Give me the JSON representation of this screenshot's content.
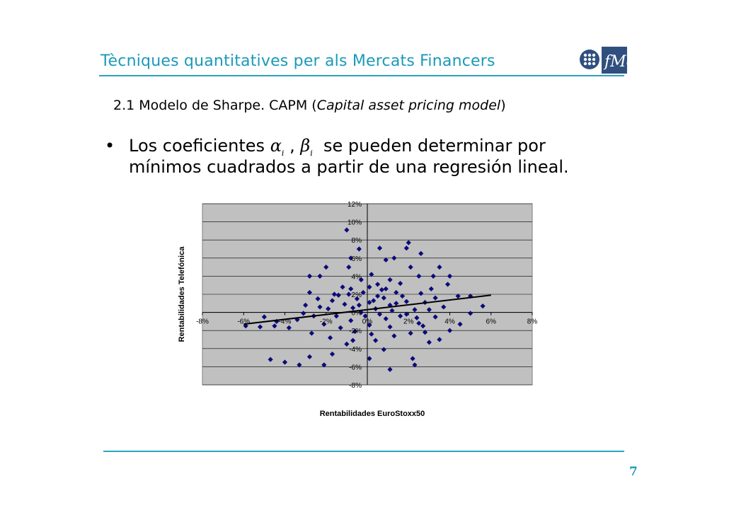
{
  "header": {
    "title": "Tècniques quantitatives per als Mercats Financers",
    "logo_text": "fMe"
  },
  "subtitle": {
    "main": "2.1 Modelo de Sharpe. CAPM (",
    "italic": "Capital asset pricing model",
    "close": ")"
  },
  "bullet": {
    "line1_pre": "Los coeficientes",
    "alpha": "α",
    "alpha_sub": "i",
    "comma": " ,",
    "beta": "β",
    "beta_sub": "i",
    "line1_post": "se pueden determinar por",
    "line2": "mínimos cuadrados a partir de una regresión lineal."
  },
  "chart_data": {
    "type": "scatter",
    "xlabel": "Rentabilidades  EuroStoxx50",
    "ylabel": "Rentabilidades Telefónica",
    "xlim": [
      -0.08,
      0.08
    ],
    "ylim": [
      -0.08,
      0.12
    ],
    "x_ticks": [
      "-8%",
      "-6%",
      "-4%",
      "-2%",
      "0%",
      "2%",
      "4%",
      "6%",
      "8%"
    ],
    "y_ticks": [
      "12%",
      "10%",
      "8%",
      "6%",
      "4%",
      "2%",
      "0%",
      "-2%",
      "-4%",
      "-6%",
      "-8%"
    ],
    "regression_line": {
      "x": [
        -0.06,
        0.06
      ],
      "y": [
        -0.013,
        0.019
      ]
    },
    "marker_color": "#0a0a7a",
    "plot_bg": "#c0c0c0",
    "grid": "horizontal",
    "points": [
      [
        -0.047,
        -0.052
      ],
      [
        -0.04,
        -0.055
      ],
      [
        -0.033,
        -0.058
      ],
      [
        -0.028,
        -0.049
      ],
      [
        -0.044,
        -0.01
      ],
      [
        -0.03,
        0.008
      ],
      [
        -0.028,
        0.04
      ],
      [
        -0.023,
        0.04
      ],
      [
        -0.02,
        0.05
      ],
      [
        -0.028,
        0.022
      ],
      [
        -0.01,
        0.091
      ],
      [
        -0.008,
        0.06
      ],
      [
        -0.009,
        0.05
      ],
      [
        -0.004,
        0.07
      ],
      [
        0.006,
        0.071
      ],
      [
        0.009,
        0.058
      ],
      [
        0.013,
        0.06
      ],
      [
        0.02,
        0.077
      ],
      [
        0.019,
        0.071
      ],
      [
        0.026,
        0.065
      ],
      [
        0.021,
        0.05
      ],
      [
        0.025,
        0.04
      ],
      [
        0.032,
        0.04
      ],
      [
        0.035,
        0.05
      ],
      [
        0.031,
        0.026
      ],
      [
        0.039,
        0.031
      ],
      [
        0.04,
        0.04
      ],
      [
        0.044,
        0.018
      ],
      [
        0.05,
        0.018
      ],
      [
        0.056,
        0.007
      ],
      [
        0.025,
        -0.012
      ],
      [
        0.028,
        -0.022
      ],
      [
        0.03,
        -0.033
      ],
      [
        0.035,
        -0.03
      ],
      [
        0.022,
        -0.051
      ],
      [
        0.011,
        -0.063
      ],
      [
        0.001,
        -0.051
      ],
      [
        -0.01,
        -0.035
      ],
      [
        -0.017,
        -0.046
      ],
      [
        -0.021,
        -0.058
      ],
      [
        0.023,
        -0.058
      ],
      [
        0.008,
        -0.041
      ],
      [
        -0.038,
        -0.017
      ],
      [
        -0.045,
        -0.015
      ],
      [
        -0.052,
        -0.016
      ],
      [
        -0.059,
        -0.015
      ],
      [
        -0.05,
        -0.005
      ],
      [
        0.05,
        -0.001
      ],
      [
        0.045,
        -0.013
      ],
      [
        0.04,
        -0.02
      ],
      [
        -0.024,
        0.015
      ],
      [
        -0.016,
        0.02
      ],
      [
        -0.012,
        0.028
      ],
      [
        -0.003,
        0.036
      ],
      [
        0.002,
        0.042
      ],
      [
        0.005,
        0.031
      ],
      [
        0.011,
        0.036
      ],
      [
        0.016,
        0.032
      ],
      [
        0.014,
        0.022
      ],
      [
        0.005,
        0.018
      ],
      [
        -0.005,
        0.015
      ],
      [
        -0.011,
        0.009
      ],
      [
        -0.019,
        0.004
      ],
      [
        -0.015,
        -0.004
      ],
      [
        -0.008,
        -0.009
      ],
      [
        0.001,
        -0.014
      ],
      [
        0.009,
        -0.007
      ],
      [
        0.016,
        -0.004
      ],
      [
        0.023,
        0.003
      ],
      [
        0.028,
        0.011
      ],
      [
        0.019,
        0.012
      ],
      [
        0.011,
        0.008
      ],
      [
        0.004,
        0.004
      ],
      [
        -0.003,
        0.0
      ],
      [
        -0.007,
        0.005
      ],
      [
        0.001,
        0.011
      ],
      [
        0.008,
        0.016
      ],
      [
        0.014,
        0.01
      ],
      [
        0.019,
        -0.002
      ],
      [
        0.011,
        -0.016
      ],
      [
        0.002,
        -0.024
      ],
      [
        -0.006,
        -0.021
      ],
      [
        -0.013,
        -0.017
      ],
      [
        -0.021,
        -0.013
      ],
      [
        -0.026,
        -0.004
      ],
      [
        -0.031,
        -0.001
      ],
      [
        -0.034,
        -0.008
      ],
      [
        -0.027,
        -0.023
      ],
      [
        -0.018,
        -0.028
      ],
      [
        -0.007,
        -0.031
      ],
      [
        0.004,
        -0.031
      ],
      [
        0.013,
        -0.026
      ],
      [
        0.021,
        -0.023
      ],
      [
        0.027,
        -0.015
      ],
      [
        0.033,
        -0.005
      ],
      [
        0.037,
        0.006
      ],
      [
        0.033,
        0.016
      ],
      [
        0.026,
        0.021
      ],
      [
        0.007,
        0.025
      ],
      [
        -0.002,
        0.022
      ],
      [
        -0.009,
        0.02
      ],
      [
        -0.017,
        0.013
      ],
      [
        -0.023,
        0.006
      ],
      [
        0.03,
        0.003
      ],
      [
        0.024,
        -0.006
      ],
      [
        -0.001,
        -0.004
      ],
      [
        0.006,
        -0.002
      ],
      [
        0.012,
        0.002
      ],
      [
        -0.004,
        0.008
      ],
      [
        0.003,
        0.013
      ],
      [
        0.017,
        0.018
      ],
      [
        0.009,
        0.026
      ],
      [
        0.001,
        0.028
      ],
      [
        -0.008,
        0.026
      ],
      [
        -0.014,
        0.019
      ]
    ]
  },
  "page": {
    "number": "7"
  }
}
